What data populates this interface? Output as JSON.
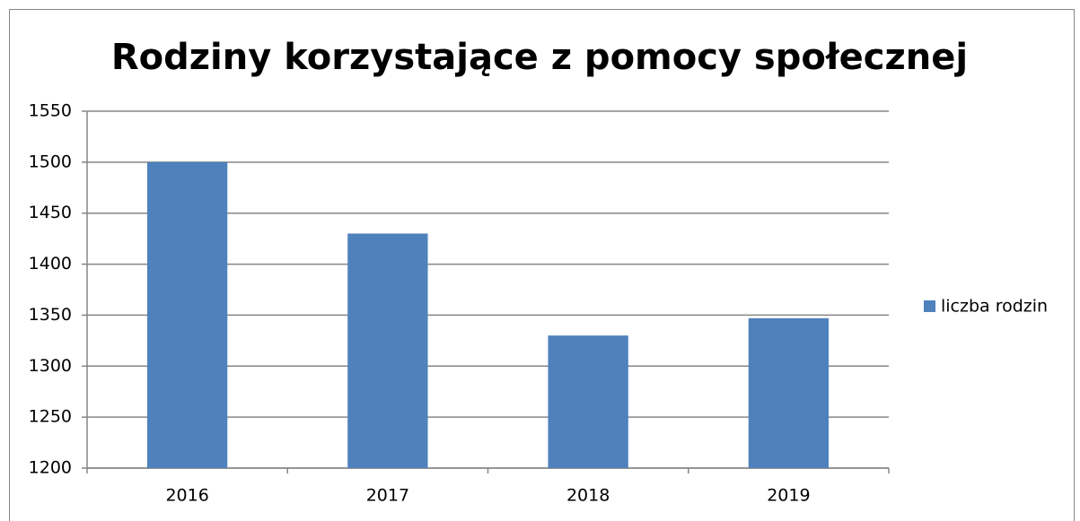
{
  "chart_data": {
    "type": "bar",
    "title": "Rodziny korzystające z pomocy społecznej",
    "categories": [
      "2016",
      "2017",
      "2018",
      "2019"
    ],
    "series": [
      {
        "name": "liczba rodzin",
        "color": "#4f81bd",
        "values": [
          1500,
          1430,
          1330,
          1347
        ]
      }
    ],
    "ylim": [
      1200,
      1550
    ],
    "yticks": [
      1200,
      1250,
      1300,
      1350,
      1400,
      1450,
      1500,
      1550
    ],
    "grid": true,
    "legend": "right"
  }
}
